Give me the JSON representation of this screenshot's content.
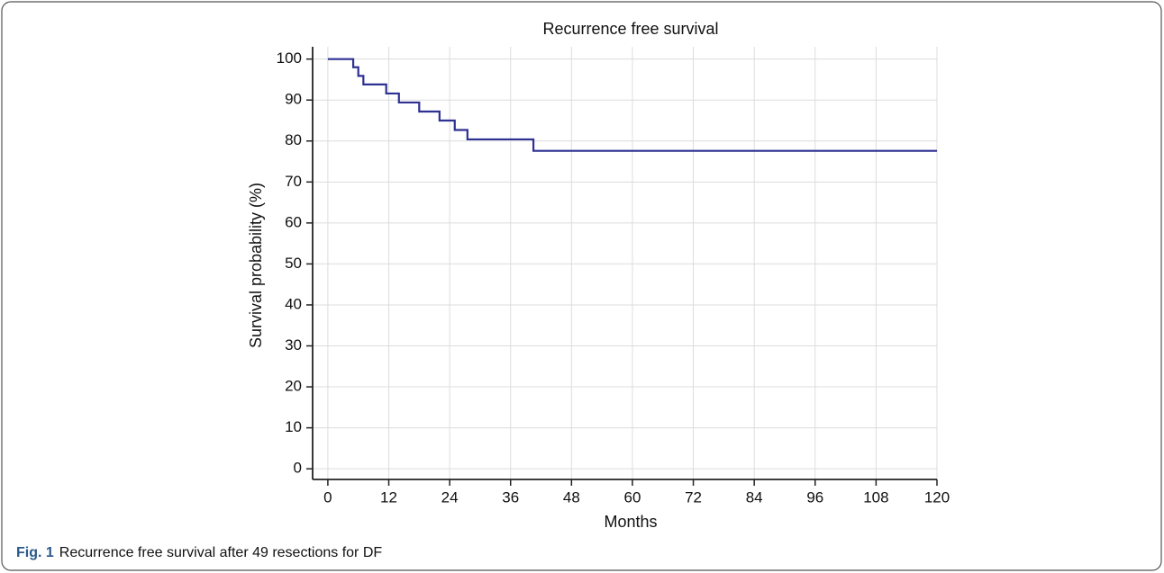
{
  "chart_data": {
    "type": "step",
    "title": "Recurrence free survival",
    "x_label": "Months",
    "y_label": "Survival probability (%)",
    "x": [
      0,
      5,
      6,
      7,
      11.5,
      14,
      18,
      22,
      25,
      27.5,
      40.5,
      120
    ],
    "series": [
      {
        "name": "Recurrence free survival",
        "color": "#2e3192",
        "values": [
          100,
          98,
          95.9,
          93.8,
          91.6,
          89.4,
          87.2,
          85,
          82.7,
          80.4,
          77.6,
          77.6
        ]
      }
    ],
    "xlim": [
      -3,
      120
    ],
    "ylim": [
      -2.6,
      103
    ],
    "xticks": [
      0,
      12,
      24,
      36,
      48,
      60,
      72,
      84,
      96,
      108,
      120
    ],
    "yticks": [
      0,
      10,
      20,
      30,
      40,
      50,
      60,
      70,
      80,
      90,
      100
    ],
    "grid": true
  },
  "caption": {
    "label": "Fig. 1",
    "text": "Recurrence free survival after 49 resections for DF"
  }
}
